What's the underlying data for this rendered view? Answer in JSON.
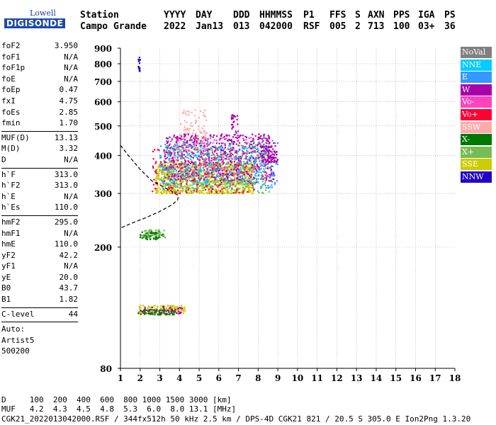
{
  "logo": {
    "top": "Lowell",
    "bottom": "DIGISONDE"
  },
  "header": {
    "row1": [
      "Station",
      "YYYY",
      "DAY",
      "DDD",
      "HHMMSS",
      "P1",
      "FFS",
      "S",
      "AXN",
      "PPS",
      "IGA",
      "PS"
    ],
    "row2": [
      "Campo Grande",
      "2022",
      "Jan13",
      "013",
      "042000",
      "RSF",
      "005",
      "2",
      "713",
      "100",
      "03+",
      "36"
    ]
  },
  "params": {
    "group1": [
      {
        "label": "foF2",
        "value": "3.950"
      },
      {
        "label": "foF1",
        "value": "N/A"
      },
      {
        "label": "foF1p",
        "value": "N/A"
      },
      {
        "label": "foE",
        "value": "N/A"
      },
      {
        "label": "foEp",
        "value": "0.47"
      },
      {
        "label": "fxI",
        "value": "4.75"
      },
      {
        "label": "foEs",
        "value": "2.85"
      },
      {
        "label": "fmin",
        "value": "1.70"
      }
    ],
    "group2": [
      {
        "label": "MUF(D)",
        "value": "13.13"
      },
      {
        "label": "M(D)",
        "value": "3.32"
      },
      {
        "label": "D",
        "value": "N/A"
      }
    ],
    "group3": [
      {
        "label": "h`F",
        "value": "313.0"
      },
      {
        "label": "h`F2",
        "value": "313.0"
      },
      {
        "label": "h`E",
        "value": "N/A"
      },
      {
        "label": "h`Es",
        "value": "110.0"
      }
    ],
    "group4": [
      {
        "label": "hmF2",
        "value": "295.0"
      },
      {
        "label": "hmF1",
        "value": "N/A"
      },
      {
        "label": "hmE",
        "value": "110.0"
      },
      {
        "label": "yF2",
        "value": "42.2"
      },
      {
        "label": "yF1",
        "value": "N/A"
      },
      {
        "label": "yE",
        "value": "20.0"
      },
      {
        "label": "B0",
        "value": "43.7"
      },
      {
        "label": "B1",
        "value": "1.82"
      }
    ],
    "clevel": {
      "label": "C-level",
      "value": "44"
    },
    "auto": [
      "Auto:",
      "Artist5",
      "500200"
    ]
  },
  "legend": [
    {
      "label": "NoVal",
      "color": "#808080"
    },
    {
      "label": "NNE",
      "color": "#00ccff"
    },
    {
      "label": "E",
      "color": "#3399ff"
    },
    {
      "label": "W",
      "color": "#aa00aa"
    },
    {
      "label": "Vo-",
      "color": "#ff44bb"
    },
    {
      "label": "Vo+",
      "color": "#ff0033"
    },
    {
      "label": "SSW",
      "color": "#ffaaaa"
    },
    {
      "label": "X-",
      "color": "#007700"
    },
    {
      "label": "X+",
      "color": "#77bb55"
    },
    {
      "label": "SSE",
      "color": "#cccc00"
    },
    {
      "label": "NNW",
      "color": "#2200cc"
    }
  ],
  "footer": {
    "d_row": "D     100  200  400  600  800 1000 1500 3000 [km]",
    "muf_row": "MUF   4.2  4.3  4.5  4.8  5.3  6.0  8.0 13.1 [MHz]",
    "file_row": "CGK21_2022013042000.RSF / 344fx512h 50 kHz 2.5 km / DPS-4D CGK21 821 / 20.5 S 305.0 E Ion2Png 1.3.20"
  },
  "chart_data": {
    "type": "scatter",
    "xlim": [
      1,
      18
    ],
    "ylim": [
      80,
      900
    ],
    "xticks": [
      1,
      2,
      3,
      4,
      5,
      6,
      7,
      8,
      9,
      10,
      11,
      12,
      13,
      14,
      15,
      16,
      17,
      18
    ],
    "yticks": [
      80,
      200,
      300,
      400,
      500,
      600,
      700,
      800,
      900
    ],
    "y_scale": "log",
    "grid": "dotted",
    "echo_regions": [
      {
        "name": "NNW",
        "color": "#2200cc",
        "x": [
          1.9,
          2.0
        ],
        "y": [
          745,
          840
        ],
        "n": 16
      },
      {
        "name": "X-",
        "color": "#007700",
        "x": [
          2.0,
          3.2
        ],
        "y": [
          212,
          225
        ],
        "n": 60
      },
      {
        "name": "X+",
        "color": "#77bb55",
        "x": [
          2.1,
          3.3
        ],
        "y": [
          215,
          228
        ],
        "n": 40
      },
      {
        "name": "SSE",
        "color": "#cccc00",
        "x": [
          1.9,
          4.3
        ],
        "y": [
          121,
          129
        ],
        "n": 120
      },
      {
        "name": "X-",
        "color": "#007700",
        "x": [
          1.9,
          3.8
        ],
        "y": [
          120,
          125
        ],
        "n": 80
      },
      {
        "name": "W",
        "color": "#aa00aa",
        "x": [
          2.0,
          4.2
        ],
        "y": [
          121,
          128
        ],
        "n": 40
      },
      {
        "name": "SSE",
        "color": "#cccc00",
        "x": [
          2.8,
          7.8
        ],
        "y": [
          300,
          380
        ],
        "n": 900
      },
      {
        "name": "W",
        "color": "#aa00aa",
        "x": [
          3.2,
          8.8
        ],
        "y": [
          330,
          470
        ],
        "n": 600
      },
      {
        "name": "E",
        "color": "#3399ff",
        "x": [
          3.0,
          9.0
        ],
        "y": [
          310,
          450
        ],
        "n": 350
      },
      {
        "name": "NNE",
        "color": "#00ccff",
        "x": [
          3.2,
          8.5
        ],
        "y": [
          320,
          430
        ],
        "n": 250
      },
      {
        "name": "Vo+",
        "color": "#ff0033",
        "x": [
          2.6,
          8.0
        ],
        "y": [
          300,
          420
        ],
        "n": 200
      },
      {
        "name": "Vo-",
        "color": "#ff44bb",
        "x": [
          3.5,
          8.5
        ],
        "y": [
          340,
          460
        ],
        "n": 150
      },
      {
        "name": "SSW",
        "color": "#ffaaaa",
        "x": [
          4.0,
          5.4
        ],
        "y": [
          410,
          565
        ],
        "n": 90
      },
      {
        "name": "X+",
        "color": "#77bb55",
        "x": [
          3.3,
          8.6
        ],
        "y": [
          300,
          440
        ],
        "n": 150
      },
      {
        "name": "W",
        "color": "#aa00aa",
        "x": [
          6.6,
          7.0
        ],
        "y": [
          440,
          545
        ],
        "n": 30
      },
      {
        "name": "W",
        "color": "#aa00aa",
        "x": [
          8.1,
          9.0
        ],
        "y": [
          380,
          430
        ],
        "n": 80
      }
    ],
    "profile": {
      "color": "#000000",
      "x": [
        1.0,
        1.4,
        2.0,
        2.6,
        3.2,
        3.6,
        3.95,
        3.9,
        3.6,
        3.0,
        2.3,
        1.6,
        1.0
      ],
      "y": [
        432,
        400,
        360,
        330,
        315,
        305,
        295,
        285,
        275,
        262,
        250,
        240,
        231
      ]
    }
  }
}
